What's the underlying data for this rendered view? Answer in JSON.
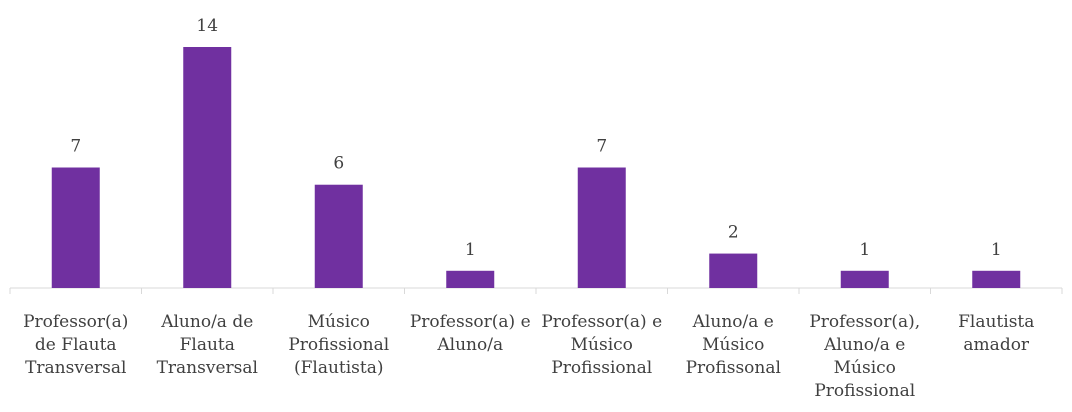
{
  "chart_data": {
    "type": "bar",
    "categories": [
      "Professor(a) de Flauta Transversal",
      "Aluno/a de Flauta Transversal",
      "Músico Profissional (Flautista)",
      "Professor(a) e Aluno/a",
      "Professor(a) e Músico Profissional",
      "Aluno/a e Músico Profissonal",
      "Professor(a), Aluno/a e Músico Profissional",
      "Flautista amador"
    ],
    "values": [
      7,
      14,
      6,
      1,
      7,
      2,
      1,
      1
    ],
    "color": "#7030a0"
  }
}
